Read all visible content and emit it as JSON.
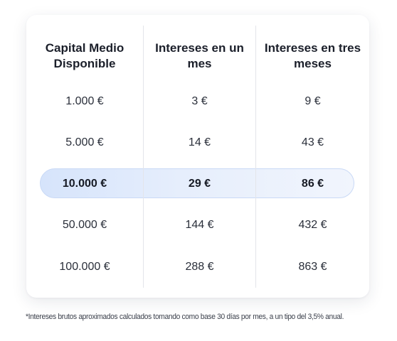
{
  "table": {
    "headers": [
      "Capital Medio Disponible",
      "Intereses en un mes",
      "Intereses en tres meses"
    ],
    "rows": [
      [
        "1.000 €",
        "3 €",
        "9 €"
      ],
      [
        "5.000 €",
        "14 €",
        "43 €"
      ],
      [
        "10.000 €",
        "29 €",
        "86 €"
      ],
      [
        "50.000 €",
        "144 €",
        "432 €"
      ],
      [
        "100.000 €",
        "288 €",
        "863 €"
      ]
    ],
    "highlight_color": "#dfe9fb"
  },
  "footnote": "*Intereses brutos aproximados calculados tomando como base 30 días por mes, a un tipo del 3,5% anual."
}
